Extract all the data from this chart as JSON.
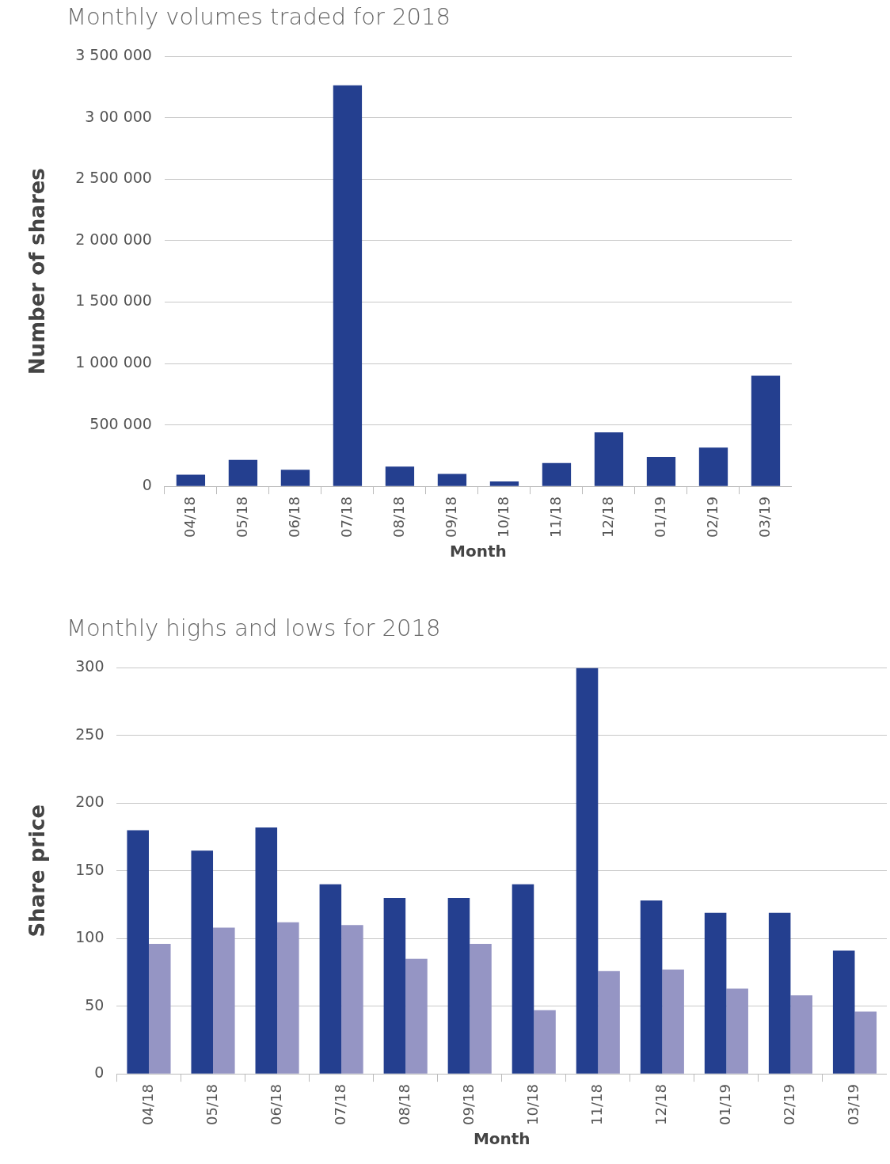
{
  "chart_data": [
    {
      "type": "bar",
      "title": "Monthly volumes traded for 2018",
      "xlabel": "Month",
      "ylabel": "Number of shares",
      "categories": [
        "04/18",
        "05/18",
        "06/18",
        "07/18",
        "08/18",
        "09/18",
        "10/18",
        "11/18",
        "12/18",
        "01/19",
        "02/19",
        "03/19"
      ],
      "values": [
        95000,
        215000,
        135000,
        3265000,
        160000,
        100000,
        40000,
        190000,
        440000,
        240000,
        315000,
        900000
      ],
      "color": "#243f8f",
      "ylim": [
        0,
        3500000
      ],
      "yticks": [
        {
          "value": 0,
          "label": "0"
        },
        {
          "value": 500000,
          "label": "500 000"
        },
        {
          "value": 1000000,
          "label": "1 000 000"
        },
        {
          "value": 1500000,
          "label": "1 500 000"
        },
        {
          "value": 2000000,
          "label": "2 000 000"
        },
        {
          "value": 2500000,
          "label": "2 500 000"
        },
        {
          "value": 3000000,
          "label": "3 00 000"
        },
        {
          "value": 3500000,
          "label": "3 500 000"
        }
      ],
      "grid": "y"
    },
    {
      "type": "bar",
      "title": "Monthly highs and lows for 2018",
      "xlabel": "Month",
      "ylabel": "Share price",
      "categories": [
        "04/18",
        "05/18",
        "06/18",
        "07/18",
        "08/18",
        "09/18",
        "10/18",
        "11/18",
        "12/18",
        "01/19",
        "02/19",
        "03/19"
      ],
      "series": [
        {
          "color": "#243f8f",
          "values": [
            180,
            165,
            182,
            140,
            130,
            130,
            140,
            300,
            128,
            119,
            119,
            91
          ]
        },
        {
          "color": "#9595c4",
          "values": [
            96,
            108,
            112,
            110,
            85,
            96,
            47,
            76,
            77,
            63,
            58,
            46
          ]
        }
      ],
      "ylim": [
        0,
        300
      ],
      "yticks": [
        0,
        50,
        100,
        150,
        200,
        250,
        300
      ],
      "grid": "y"
    }
  ]
}
